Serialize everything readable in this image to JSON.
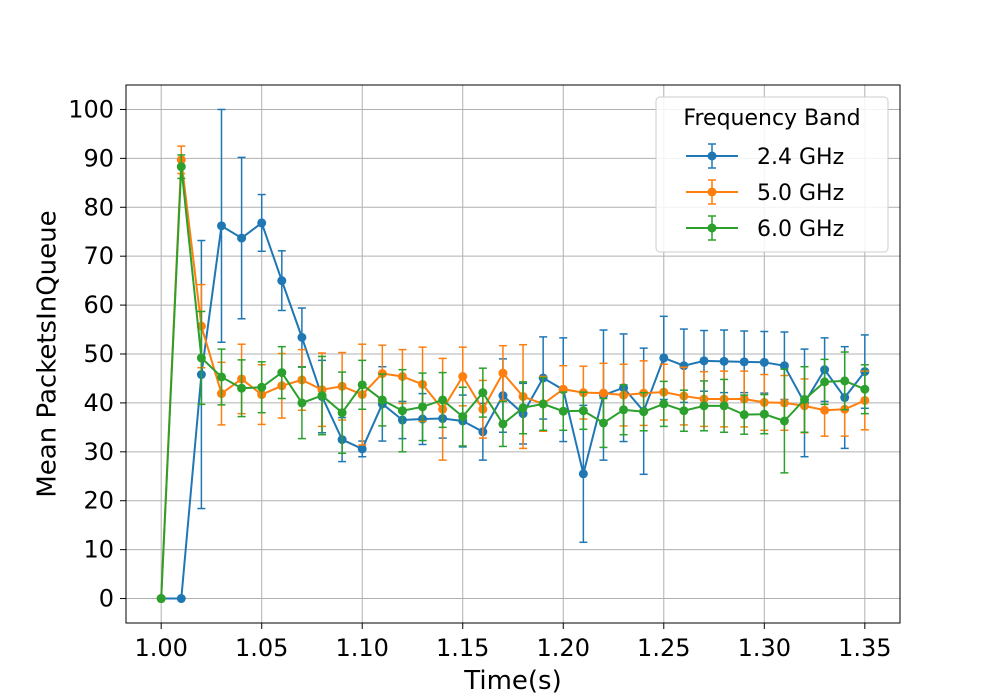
{
  "chart_data": {
    "type": "line",
    "xlabel": "Time(s)",
    "ylabel": "Mean PacketsInQueue",
    "xlim": [
      0.9825,
      1.3675
    ],
    "ylim": [
      -5,
      105
    ],
    "xticks": [
      "1.00",
      "1.05",
      "1.10",
      "1.15",
      "1.20",
      "1.25",
      "1.30",
      "1.35"
    ],
    "yticks": [
      "0",
      "10",
      "20",
      "30",
      "40",
      "50",
      "60",
      "70",
      "80",
      "90",
      "100"
    ],
    "grid": true,
    "legend": {
      "title": "Frequency Band",
      "placement": "top-right"
    },
    "x": [
      1.0,
      1.01,
      1.02,
      1.03,
      1.04,
      1.05,
      1.06,
      1.07,
      1.08,
      1.09,
      1.1,
      1.11,
      1.12,
      1.13,
      1.14,
      1.15,
      1.16,
      1.17,
      1.18,
      1.19,
      1.2,
      1.21,
      1.22,
      1.23,
      1.24,
      1.25,
      1.26,
      1.27,
      1.28,
      1.29,
      1.3,
      1.31,
      1.32,
      1.33,
      1.34,
      1.35
    ],
    "series": [
      {
        "name": "2.4 GHz",
        "color": "#1f77b4",
        "values": [
          0,
          0,
          45.8,
          76.2,
          73.7,
          76.8,
          65.0,
          53.4,
          41.3,
          32.5,
          30.6,
          39.8,
          36.5,
          36.7,
          36.8,
          36.3,
          34.1,
          41.5,
          37.8,
          45.1,
          42.7,
          25.5,
          41.6,
          43.1,
          38.3,
          49.2,
          47.6,
          48.6,
          48.5,
          48.4,
          48.3,
          47.6,
          40.0,
          46.8,
          41.1,
          46.4
        ],
        "errors": [
          0,
          0,
          27.4,
          23.8,
          16.5,
          5.8,
          6.1,
          6.0,
          7.4,
          4.5,
          1.6,
          7.6,
          3.8,
          5.2,
          4.0,
          5.3,
          5.8,
          7.5,
          6.2,
          8.4,
          10.6,
          14.0,
          13.3,
          11.0,
          12.9,
          8.5,
          7.5,
          6.2,
          6.4,
          6.3,
          6.3,
          6.9,
          11.0,
          6.5,
          10.4,
          7.5
        ]
      },
      {
        "name": "5.0 GHz",
        "color": "#ff7f0e",
        "values": [
          0,
          89.7,
          55.7,
          41.9,
          44.9,
          41.7,
          43.5,
          44.7,
          42.7,
          43.4,
          41.7,
          46.0,
          45.4,
          43.8,
          38.7,
          45.4,
          38.7,
          46.1,
          41.3,
          39.8,
          42.8,
          42.1,
          42.0,
          41.6,
          42.0,
          42.2,
          41.4,
          40.8,
          40.8,
          40.8,
          40.1,
          40.0,
          39.4,
          38.5,
          38.7,
          40.5
        ],
        "errors": [
          0,
          2.8,
          8.5,
          6.4,
          7.1,
          6.1,
          6.6,
          6.2,
          7.5,
          6.9,
          10.3,
          5.8,
          5.5,
          7.6,
          10.4,
          6.0,
          5.9,
          5.6,
          10.6,
          5.6,
          4.8,
          5.4,
          6.1,
          6.3,
          6.6,
          5.7,
          5.9,
          5.6,
          5.7,
          5.7,
          5.7,
          5.6,
          5.5,
          5.3,
          5.5,
          6.0
        ]
      },
      {
        "name": "6.0 GHz",
        "color": "#2ca02c",
        "values": [
          0,
          88.3,
          49.2,
          45.3,
          43.0,
          43.2,
          46.2,
          40.0,
          41.5,
          38.0,
          43.7,
          40.6,
          38.4,
          39.2,
          40.6,
          37.2,
          42.1,
          35.7,
          39.0,
          39.8,
          38.3,
          38.4,
          35.9,
          38.6,
          38.2,
          39.8,
          38.4,
          39.4,
          39.4,
          37.6,
          37.7,
          36.3,
          40.7,
          44.3,
          44.5,
          42.8
        ],
        "errors": [
          0,
          2.4,
          9.5,
          5.7,
          5.8,
          5.2,
          5.3,
          7.3,
          8.0,
          8.3,
          5.0,
          5.3,
          8.4,
          6.9,
          5.6,
          6.0,
          5.0,
          4.6,
          5.3,
          5.4,
          3.9,
          3.8,
          5.0,
          5.1,
          3.9,
          4.6,
          4.2,
          5.1,
          5.4,
          4.0,
          4.0,
          10.6,
          6.7,
          4.6,
          5.9,
          5.0
        ]
      }
    ]
  }
}
